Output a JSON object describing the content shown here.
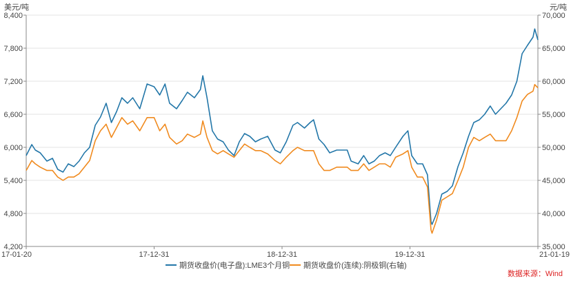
{
  "chart_data": {
    "type": "line",
    "y_left_unit": "美元/吨",
    "y_right_unit": "元/吨",
    "x_tick_labels": [
      "17-01-20",
      "17-12-31",
      "18-12-31",
      "19-12-31",
      "21-01-19"
    ],
    "x_range": [
      "2017-01-20",
      "2021-01-19"
    ],
    "y_left_range": [
      4200,
      8400
    ],
    "y_left_ticks": [
      4200,
      4800,
      5400,
      6000,
      6600,
      7200,
      7800,
      8400
    ],
    "y_right_range": [
      35000,
      70000
    ],
    "y_right_ticks": [
      35000,
      40000,
      45000,
      50000,
      55000,
      60000,
      65000,
      70000
    ],
    "grid": "horizontal",
    "legend_position": "bottom",
    "source": "数据来源：Wind",
    "series": [
      {
        "name": "期货收盘价(电子盘):LME3个月铜",
        "axis": "left",
        "color": "#2276a8",
        "points": [
          [
            "2017-01-20",
            5850
          ],
          [
            "2017-02-05",
            6050
          ],
          [
            "2017-02-15",
            5950
          ],
          [
            "2017-03-01",
            5900
          ],
          [
            "2017-03-20",
            5750
          ],
          [
            "2017-04-05",
            5800
          ],
          [
            "2017-04-20",
            5600
          ],
          [
            "2017-05-05",
            5550
          ],
          [
            "2017-05-20",
            5700
          ],
          [
            "2017-06-05",
            5650
          ],
          [
            "2017-06-20",
            5750
          ],
          [
            "2017-07-05",
            5900
          ],
          [
            "2017-07-20",
            6000
          ],
          [
            "2017-08-05",
            6400
          ],
          [
            "2017-08-20",
            6550
          ],
          [
            "2017-09-05",
            6800
          ],
          [
            "2017-09-20",
            6450
          ],
          [
            "2017-10-05",
            6650
          ],
          [
            "2017-10-20",
            6900
          ],
          [
            "2017-11-05",
            6800
          ],
          [
            "2017-11-20",
            6900
          ],
          [
            "2017-12-10",
            6700
          ],
          [
            "2017-12-31",
            7150
          ],
          [
            "2018-01-20",
            7100
          ],
          [
            "2018-02-05",
            6950
          ],
          [
            "2018-02-20",
            7150
          ],
          [
            "2018-03-05",
            6800
          ],
          [
            "2018-03-25",
            6700
          ],
          [
            "2018-04-10",
            6850
          ],
          [
            "2018-04-25",
            7000
          ],
          [
            "2018-05-15",
            6900
          ],
          [
            "2018-06-01",
            7050
          ],
          [
            "2018-06-08",
            7300
          ],
          [
            "2018-06-20",
            6900
          ],
          [
            "2018-07-05",
            6300
          ],
          [
            "2018-07-20",
            6150
          ],
          [
            "2018-08-05",
            6100
          ],
          [
            "2018-08-20",
            5950
          ],
          [
            "2018-09-05",
            5850
          ],
          [
            "2018-09-20",
            6100
          ],
          [
            "2018-10-05",
            6250
          ],
          [
            "2018-10-20",
            6200
          ],
          [
            "2018-11-05",
            6100
          ],
          [
            "2018-11-20",
            6150
          ],
          [
            "2018-12-10",
            6200
          ],
          [
            "2018-12-31",
            5950
          ],
          [
            "2019-01-15",
            5900
          ],
          [
            "2019-02-01",
            6100
          ],
          [
            "2019-02-20",
            6400
          ],
          [
            "2019-03-05",
            6450
          ],
          [
            "2019-03-25",
            6350
          ],
          [
            "2019-04-10",
            6450
          ],
          [
            "2019-04-20",
            6500
          ],
          [
            "2019-05-05",
            6150
          ],
          [
            "2019-05-20",
            6050
          ],
          [
            "2019-06-05",
            5900
          ],
          [
            "2019-06-25",
            5950
          ],
          [
            "2019-07-10",
            5950
          ],
          [
            "2019-07-25",
            5950
          ],
          [
            "2019-08-05",
            5750
          ],
          [
            "2019-08-25",
            5700
          ],
          [
            "2019-09-10",
            5850
          ],
          [
            "2019-09-25",
            5700
          ],
          [
            "2019-10-10",
            5750
          ],
          [
            "2019-10-25",
            5850
          ],
          [
            "2019-11-10",
            5900
          ],
          [
            "2019-11-25",
            5850
          ],
          [
            "2019-12-10",
            6000
          ],
          [
            "2019-12-31",
            6200
          ],
          [
            "2020-01-14",
            6300
          ],
          [
            "2020-01-25",
            5850
          ],
          [
            "2020-02-10",
            5700
          ],
          [
            "2020-02-25",
            5700
          ],
          [
            "2020-03-10",
            5500
          ],
          [
            "2020-03-20",
            4650
          ],
          [
            "2020-03-23",
            4600
          ],
          [
            "2020-04-05",
            4800
          ],
          [
            "2020-04-20",
            5150
          ],
          [
            "2020-05-05",
            5200
          ],
          [
            "2020-05-20",
            5300
          ],
          [
            "2020-06-05",
            5650
          ],
          [
            "2020-06-20",
            5900
          ],
          [
            "2020-07-05",
            6200
          ],
          [
            "2020-07-20",
            6450
          ],
          [
            "2020-08-05",
            6500
          ],
          [
            "2020-08-20",
            6600
          ],
          [
            "2020-09-05",
            6750
          ],
          [
            "2020-09-20",
            6600
          ],
          [
            "2020-10-05",
            6700
          ],
          [
            "2020-10-20",
            6800
          ],
          [
            "2020-11-05",
            6950
          ],
          [
            "2020-11-20",
            7200
          ],
          [
            "2020-12-05",
            7700
          ],
          [
            "2020-12-20",
            7850
          ],
          [
            "2021-01-05",
            8000
          ],
          [
            "2021-01-10",
            8150
          ],
          [
            "2021-01-19",
            7950
          ]
        ]
      },
      {
        "name": "期货收盘价(连续):阴极铜(右轴)",
        "axis": "right",
        "color": "#f08a1e",
        "points": [
          [
            "2017-01-20",
            46500
          ],
          [
            "2017-02-05",
            48000
          ],
          [
            "2017-02-15",
            47500
          ],
          [
            "2017-03-01",
            47000
          ],
          [
            "2017-03-20",
            46500
          ],
          [
            "2017-04-05",
            46500
          ],
          [
            "2017-04-20",
            45500
          ],
          [
            "2017-05-05",
            45000
          ],
          [
            "2017-05-20",
            45500
          ],
          [
            "2017-06-05",
            45500
          ],
          [
            "2017-06-20",
            46000
          ],
          [
            "2017-07-05",
            47000
          ],
          [
            "2017-07-20",
            48000
          ],
          [
            "2017-08-05",
            51000
          ],
          [
            "2017-08-20",
            52500
          ],
          [
            "2017-09-05",
            53500
          ],
          [
            "2017-09-20",
            51500
          ],
          [
            "2017-10-05",
            53000
          ],
          [
            "2017-10-20",
            54500
          ],
          [
            "2017-11-05",
            53500
          ],
          [
            "2017-11-20",
            54000
          ],
          [
            "2017-12-10",
            52500
          ],
          [
            "2017-12-31",
            54500
          ],
          [
            "2018-01-20",
            54500
          ],
          [
            "2018-02-05",
            52500
          ],
          [
            "2018-02-20",
            53500
          ],
          [
            "2018-03-05",
            51500
          ],
          [
            "2018-03-25",
            50500
          ],
          [
            "2018-04-10",
            51000
          ],
          [
            "2018-04-25",
            52000
          ],
          [
            "2018-05-15",
            51500
          ],
          [
            "2018-06-01",
            52000
          ],
          [
            "2018-06-08",
            54000
          ],
          [
            "2018-06-20",
            51500
          ],
          [
            "2018-07-05",
            49500
          ],
          [
            "2018-07-20",
            49000
          ],
          [
            "2018-08-05",
            49500
          ],
          [
            "2018-08-20",
            49000
          ],
          [
            "2018-09-05",
            48500
          ],
          [
            "2018-09-20",
            49500
          ],
          [
            "2018-10-05",
            50500
          ],
          [
            "2018-10-20",
            50000
          ],
          [
            "2018-11-05",
            49500
          ],
          [
            "2018-11-20",
            49500
          ],
          [
            "2018-12-10",
            49000
          ],
          [
            "2018-12-31",
            48000
          ],
          [
            "2019-01-15",
            47500
          ],
          [
            "2019-02-01",
            48500
          ],
          [
            "2019-02-20",
            49500
          ],
          [
            "2019-03-05",
            50000
          ],
          [
            "2019-03-25",
            49500
          ],
          [
            "2019-04-10",
            49500
          ],
          [
            "2019-04-20",
            49500
          ],
          [
            "2019-05-05",
            47500
          ],
          [
            "2019-05-20",
            46500
          ],
          [
            "2019-06-05",
            46500
          ],
          [
            "2019-06-25",
            47000
          ],
          [
            "2019-07-10",
            47000
          ],
          [
            "2019-07-25",
            47000
          ],
          [
            "2019-08-05",
            46500
          ],
          [
            "2019-08-25",
            46500
          ],
          [
            "2019-09-10",
            47500
          ],
          [
            "2019-09-25",
            46500
          ],
          [
            "2019-10-10",
            47000
          ],
          [
            "2019-10-25",
            47500
          ],
          [
            "2019-11-10",
            47500
          ],
          [
            "2019-11-25",
            47000
          ],
          [
            "2019-12-10",
            48500
          ],
          [
            "2019-12-31",
            49000
          ],
          [
            "2020-01-14",
            49500
          ],
          [
            "2020-01-25",
            47000
          ],
          [
            "2020-02-10",
            45500
          ],
          [
            "2020-02-25",
            45500
          ],
          [
            "2020-03-10",
            44000
          ],
          [
            "2020-03-20",
            37500
          ],
          [
            "2020-03-23",
            37000
          ],
          [
            "2020-04-05",
            39000
          ],
          [
            "2020-04-20",
            42000
          ],
          [
            "2020-05-05",
            42500
          ],
          [
            "2020-05-20",
            43000
          ],
          [
            "2020-06-05",
            45000
          ],
          [
            "2020-06-20",
            47000
          ],
          [
            "2020-07-05",
            50000
          ],
          [
            "2020-07-20",
            51500
          ],
          [
            "2020-08-05",
            51000
          ],
          [
            "2020-08-20",
            51500
          ],
          [
            "2020-09-05",
            52000
          ],
          [
            "2020-09-20",
            51000
          ],
          [
            "2020-10-05",
            51000
          ],
          [
            "2020-10-20",
            51000
          ],
          [
            "2020-11-05",
            52500
          ],
          [
            "2020-11-20",
            54500
          ],
          [
            "2020-12-05",
            57000
          ],
          [
            "2020-12-20",
            58000
          ],
          [
            "2021-01-05",
            58500
          ],
          [
            "2021-01-10",
            59500
          ],
          [
            "2021-01-19",
            59000
          ]
        ]
      }
    ]
  }
}
